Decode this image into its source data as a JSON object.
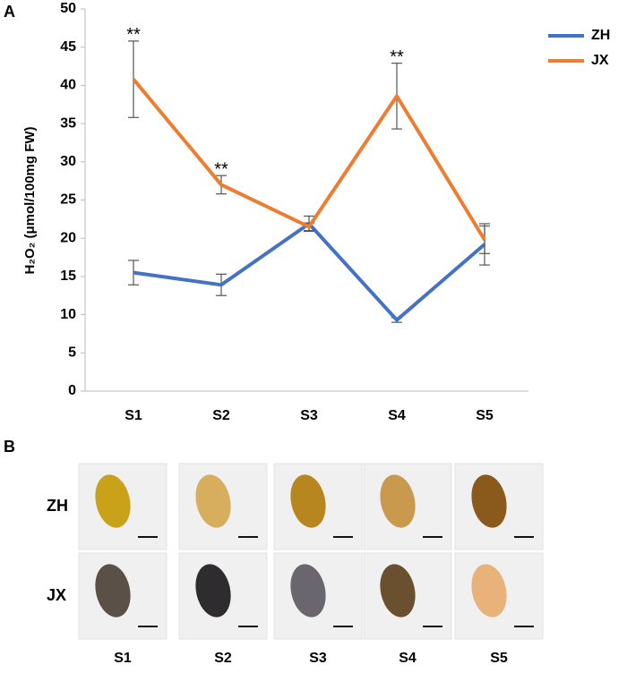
{
  "chart_data": {
    "type": "line",
    "label": "A",
    "y_label": "H₂O₂ (μmol/100mg FW)",
    "categories": [
      "S1",
      "S2",
      "S3",
      "S4",
      "S5"
    ],
    "series": [
      {
        "name": "ZH",
        "color": "#4472c4",
        "values": [
          15.5,
          13.9,
          21.9,
          9.3,
          19.2
        ],
        "errors": [
          1.6,
          1.4,
          1.0,
          0.3,
          2.7
        ]
      },
      {
        "name": "JX",
        "color": "#ed7d31",
        "values": [
          40.8,
          27.0,
          21.5,
          38.6,
          19.8
        ],
        "errors": [
          5.0,
          1.2,
          0.5,
          4.3,
          1.8
        ]
      }
    ],
    "annotations": [
      {
        "text": "**",
        "x": "S1"
      },
      {
        "text": "**",
        "x": "S2"
      },
      {
        "text": "**",
        "x": "S4"
      }
    ],
    "ylim": [
      0,
      50
    ],
    "yticks": [
      0,
      5,
      10,
      15,
      20,
      25,
      30,
      35,
      40,
      45,
      50
    ],
    "legend": "upper right"
  },
  "panel_b": {
    "label": "B",
    "rows": [
      "ZH",
      "JX"
    ],
    "columns": [
      "S1",
      "S2",
      "S3",
      "S4",
      "S5"
    ]
  }
}
